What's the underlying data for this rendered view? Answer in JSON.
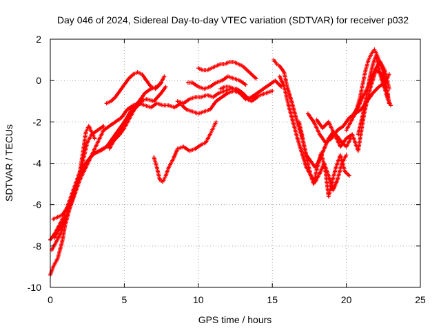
{
  "chart_data": {
    "type": "scatter",
    "title": "Day 046 of 2024, Sidereal Day-to-day VTEC variation (SDTVAR) for receiver p032",
    "xlabel": "GPS time / hours",
    "ylabel": "SDTVAR / TECUs",
    "xlim": [
      0,
      25
    ],
    "ylim": [
      -10,
      2
    ],
    "xticks": [
      0,
      5,
      10,
      15,
      20,
      25
    ],
    "yticks": [
      -10,
      -8,
      -6,
      -4,
      -2,
      0,
      2
    ],
    "grid": true,
    "marker": "+",
    "color": "#ff0000",
    "series": [
      {
        "x": [
          0.0,
          0.2,
          0.5,
          0.8,
          1.0,
          1.3,
          1.6,
          1.9,
          2.2,
          2.6,
          3.0,
          3.4,
          3.8,
          4.2,
          4.6,
          5.0,
          5.4,
          5.8,
          6.2
        ],
        "y": [
          -9.4,
          -9.0,
          -8.6,
          -7.8,
          -7.0,
          -6.2,
          -5.5,
          -4.8,
          -4.2,
          -3.8,
          -3.5,
          -3.4,
          -3.2,
          -3.0,
          -2.6,
          -2.0,
          -1.6,
          -1.3,
          -1.0
        ]
      },
      {
        "x": [
          0.0,
          0.3,
          0.6,
          0.9,
          1.2,
          1.5,
          1.8,
          2.1,
          2.3,
          2.5,
          2.8,
          3.2,
          3.6
        ],
        "y": [
          -7.7,
          -7.4,
          -7.0,
          -6.6,
          -6.0,
          -5.4,
          -4.8,
          -4.2,
          -3.6,
          -3.0,
          -2.6,
          -2.4,
          -2.2
        ]
      },
      {
        "x": [
          0.2,
          0.5,
          0.8,
          1.1,
          1.4,
          1.7,
          2.0,
          2.2,
          2.4,
          2.6,
          3.0
        ],
        "y": [
          -6.7,
          -6.6,
          -6.5,
          -6.2,
          -5.8,
          -5.2,
          -4.4,
          -3.5,
          -2.5,
          -2.2,
          -2.8
        ]
      },
      {
        "x": [
          0.1,
          0.4,
          0.7,
          1.0,
          1.3,
          1.7,
          2.0,
          2.4,
          2.8,
          3.3,
          3.8,
          4.2,
          4.6,
          5.0,
          5.5,
          6.0,
          6.5,
          7.0,
          7.5,
          7.8
        ],
        "y": [
          -8.2,
          -7.8,
          -7.4,
          -6.8,
          -6.0,
          -5.2,
          -4.6,
          -4.2,
          -3.6,
          -3.4,
          -3.2,
          -2.8,
          -2.4,
          -2.0,
          -1.4,
          -1.0,
          -0.9,
          -1.0,
          -0.6,
          -0.3
        ]
      },
      {
        "x": [
          0.3,
          0.6,
          0.9,
          1.2,
          1.6,
          2.0,
          2.4,
          2.8,
          3.2,
          3.6,
          4.0,
          4.4,
          4.8,
          5.2,
          5.6,
          6.0,
          6.4,
          6.8,
          7.2,
          7.6,
          8.0,
          8.4,
          8.8
        ],
        "y": [
          -7.6,
          -7.2,
          -6.9,
          -6.4,
          -5.6,
          -4.8,
          -4.2,
          -3.6,
          -3.0,
          -2.4,
          -2.2,
          -2.0,
          -1.8,
          -1.4,
          -1.2,
          -1.1,
          -1.2,
          -1.3,
          -1.1,
          -1.2,
          -1.2,
          -1.3,
          -1.1
        ]
      },
      {
        "x": [
          3.8,
          4.1,
          4.4,
          4.7,
          5.0,
          5.3,
          5.6,
          5.9,
          6.2,
          6.5,
          6.8,
          7.1,
          7.4,
          7.7
        ],
        "y": [
          -1.1,
          -1.0,
          -0.8,
          -0.5,
          -0.2,
          0.1,
          0.3,
          0.4,
          0.3,
          0.0,
          -0.3,
          -0.4,
          -0.2,
          0.2
        ]
      },
      {
        "x": [
          4.0,
          4.3,
          4.7,
          5.0,
          5.3,
          5.6,
          6.0,
          6.4,
          6.8,
          7.2,
          7.5
        ],
        "y": [
          -3.3,
          -2.9,
          -2.6,
          -2.3,
          -1.9,
          -1.5,
          -1.0,
          -0.6,
          -0.4,
          -0.3,
          -0.1
        ]
      },
      {
        "x": [
          7.0,
          7.2,
          7.4,
          7.6,
          7.8,
          8.0,
          8.3,
          8.6,
          9.0,
          9.4,
          9.8,
          10.2,
          10.5,
          10.8,
          11.0,
          11.2
        ],
        "y": [
          -3.7,
          -4.2,
          -4.8,
          -4.9,
          -4.6,
          -4.2,
          -3.8,
          -3.3,
          -3.2,
          -3.4,
          -3.3,
          -3.1,
          -3.0,
          -2.6,
          -2.3,
          -2.0
        ]
      },
      {
        "x": [
          8.9,
          9.2,
          9.6,
          10.0,
          10.4,
          10.8,
          11.2,
          11.6,
          12.0,
          12.4,
          12.8,
          13.2,
          13.6,
          14.0,
          14.4,
          14.8,
          15.2,
          15.6
        ],
        "y": [
          -1.2,
          -1.4,
          -1.5,
          -1.6,
          -1.5,
          -1.4,
          -1.0,
          -0.8,
          -0.6,
          -0.5,
          -0.6,
          -0.9,
          -0.8,
          -0.6,
          -0.4,
          -0.2,
          0.0,
          -0.3
        ]
      },
      {
        "x": [
          8.6,
          9.0,
          9.4,
          9.8,
          10.2,
          10.6,
          11.0,
          11.4,
          11.8,
          12.2,
          12.6,
          13.0,
          13.4,
          13.8,
          14.2,
          14.6,
          15.0
        ],
        "y": [
          -1.0,
          -1.1,
          -0.9,
          -0.8,
          -0.8,
          -0.7,
          -0.8,
          -0.6,
          -0.5,
          -0.4,
          -0.4,
          -0.6,
          -0.9,
          -0.8,
          -0.7,
          -0.6,
          -0.5
        ]
      },
      {
        "x": [
          9.3,
          9.6,
          10.0,
          10.4,
          10.8,
          11.2,
          11.6,
          12.0,
          12.4,
          12.8,
          13.2
        ],
        "y": [
          -0.1,
          -0.1,
          -0.3,
          -0.4,
          -0.3,
          -0.1,
          0.0,
          0.2,
          0.1,
          0.0,
          -0.2
        ]
      },
      {
        "x": [
          10.0,
          10.3,
          10.6,
          10.9,
          11.2,
          11.5,
          11.8,
          12.1,
          12.4,
          12.7,
          13.0,
          13.3,
          13.6,
          13.9
        ],
        "y": [
          0.6,
          0.5,
          0.5,
          0.6,
          0.7,
          0.8,
          0.8,
          0.9,
          0.9,
          0.8,
          0.7,
          0.5,
          0.3,
          0.1
        ]
      },
      {
        "x": [
          11.5,
          11.8,
          12.1,
          12.4,
          12.7,
          13.0,
          13.3,
          13.6,
          14.0
        ],
        "y": [
          -0.4,
          -0.3,
          -0.3,
          -0.4,
          -0.5,
          -0.7,
          -0.9,
          -1.0,
          -0.8
        ]
      },
      {
        "x": [
          15.1,
          15.3,
          15.5,
          15.8,
          16.0,
          16.3,
          16.6,
          16.9,
          17.1,
          17.3,
          17.6,
          17.9,
          18.2,
          18.5,
          18.8,
          19.1,
          19.4,
          19.7,
          20.0,
          20.3
        ],
        "y": [
          1.0,
          0.8,
          0.7,
          0.4,
          -0.3,
          -1.0,
          -1.8,
          -2.5,
          -3.0,
          -3.6,
          -3.9,
          -4.2,
          -3.8,
          -3.3,
          -2.8,
          -2.5,
          -2.7,
          -3.0,
          -3.2,
          -2.8
        ]
      },
      {
        "x": [
          15.5,
          15.8,
          16.1,
          16.4,
          16.7,
          17.0,
          17.3,
          17.6,
          17.9,
          18.2,
          18.5,
          18.8,
          19.1,
          19.4,
          19.7,
          20.0
        ],
        "y": [
          0.2,
          -0.3,
          -1.2,
          -2.0,
          -2.8,
          -3.5,
          -4.2,
          -4.6,
          -4.9,
          -4.5,
          -4.0,
          -4.6,
          -5.3,
          -4.8,
          -4.0,
          -3.6
        ]
      },
      {
        "x": [
          16.8,
          17.0,
          17.2,
          17.4,
          17.6,
          17.8,
          18.0,
          18.3,
          18.6,
          18.8,
          19.0,
          19.3,
          19.6,
          19.9,
          20.2
        ],
        "y": [
          -2.0,
          -2.6,
          -3.4,
          -4.0,
          -4.6,
          -5.0,
          -4.3,
          -3.5,
          -4.4,
          -5.6,
          -5.0,
          -4.2,
          -3.6,
          -4.4,
          -4.6
        ]
      },
      {
        "x": [
          17.4,
          17.8,
          18.2,
          18.6,
          19.0,
          19.4,
          19.8,
          20.2,
          20.6,
          21.0,
          21.4,
          21.8,
          22.2,
          22.6,
          22.9
        ],
        "y": [
          -1.6,
          -2.0,
          -2.6,
          -3.0,
          -2.8,
          -2.4,
          -2.2,
          -1.8,
          -1.6,
          -1.4,
          -1.0,
          -0.6,
          -0.3,
          -0.1,
          0.3
        ]
      },
      {
        "x": [
          18.0,
          18.4,
          18.8,
          19.2,
          19.6,
          20.0,
          20.4,
          20.8,
          21.2,
          21.6,
          22.0,
          22.4,
          22.8
        ],
        "y": [
          -1.9,
          -2.3,
          -2.0,
          -2.6,
          -3.2,
          -2.8,
          -2.6,
          -3.4,
          -1.6,
          -0.4,
          0.5,
          0.3,
          -0.8
        ]
      },
      {
        "x": [
          20.0,
          20.3,
          20.6,
          20.9,
          21.1,
          21.3,
          21.5,
          21.7,
          21.9,
          22.1,
          22.3,
          22.5,
          22.7,
          22.9
        ],
        "y": [
          -2.4,
          -2.0,
          -1.6,
          -0.9,
          -0.2,
          0.5,
          1.0,
          1.3,
          1.5,
          1.2,
          0.8,
          0.4,
          -0.2,
          -1.1
        ]
      },
      {
        "x": [
          20.5,
          20.8,
          21.1,
          21.4,
          21.7,
          22.0,
          22.3,
          22.6,
          22.9
        ],
        "y": [
          -1.6,
          -1.3,
          -0.8,
          -0.4,
          0.1,
          0.6,
          0.9,
          0.5,
          -0.4
        ]
      },
      {
        "x": [
          20.8,
          21.0,
          21.2,
          21.4,
          21.6,
          21.8,
          22.0,
          22.2,
          22.4,
          22.6,
          22.8,
          23.0
        ],
        "y": [
          -2.6,
          -2.0,
          -1.4,
          -0.6,
          0.2,
          0.8,
          1.2,
          0.6,
          0.0,
          -0.4,
          -0.9,
          -1.2
        ]
      }
    ]
  }
}
